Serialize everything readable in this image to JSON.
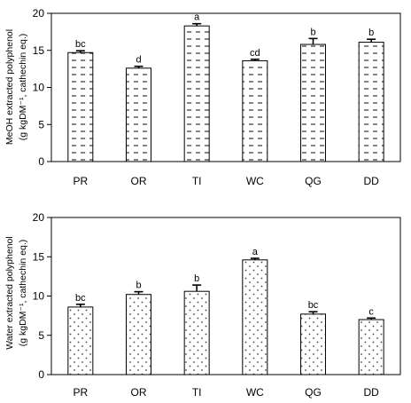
{
  "chart_data": [
    {
      "type": "bar",
      "categories": [
        "PR",
        "OR",
        "TI",
        "WC",
        "QG",
        "DD"
      ],
      "values": [
        14.7,
        12.6,
        18.3,
        13.6,
        15.8,
        16.1
      ],
      "errors": [
        0.25,
        0.25,
        0.3,
        0.2,
        0.8,
        0.4
      ],
      "letters": [
        "bc",
        "d",
        "a",
        "cd",
        "b",
        "b"
      ],
      "ylabel": [
        "MeOH extracted polyphenol",
        "(g kgDM⁻¹, cathechin eq.)"
      ],
      "ylim": [
        0,
        20
      ],
      "yticks": [
        0,
        5,
        10,
        15,
        20
      ],
      "pattern": "dashes"
    },
    {
      "type": "bar",
      "categories": [
        "PR",
        "OR",
        "TI",
        "WC",
        "QG",
        "DD"
      ],
      "values": [
        8.6,
        10.2,
        10.6,
        14.6,
        7.7,
        7.0
      ],
      "errors": [
        0.35,
        0.35,
        0.8,
        0.2,
        0.3,
        0.2
      ],
      "letters": [
        "bc",
        "b",
        "b",
        "a",
        "bc",
        "c"
      ],
      "ylabel": [
        "Water extracted polyphenol",
        "(g kgDM⁻¹, cathechin eq.)"
      ],
      "ylim": [
        0,
        20
      ],
      "yticks": [
        0,
        5,
        10,
        15,
        20
      ],
      "pattern": "dots"
    }
  ]
}
